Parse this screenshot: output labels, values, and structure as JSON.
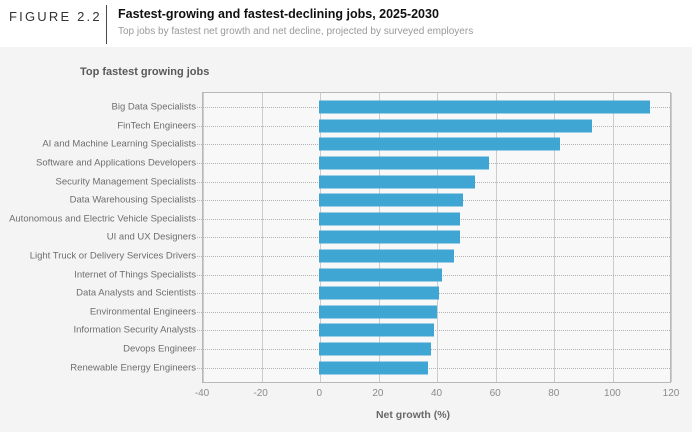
{
  "header": {
    "figure_label": "FIGURE 2.2",
    "title": "Fastest-growing and fastest-declining jobs, 2025-2030",
    "subtitle": "Top jobs by fastest net growth and net decline, projected by surveyed employers"
  },
  "panel": {
    "section_label": "Top fastest growing jobs"
  },
  "chart_data": {
    "type": "bar",
    "orientation": "horizontal",
    "title": "Top fastest growing jobs",
    "categories": [
      "Big Data Specialists",
      "FinTech Engineers",
      "AI and Machine Learning Specialists",
      "Software and Applications Developers",
      "Security Management Specialists",
      "Data Warehousing Specialists",
      "Autonomous and Electric Vehicle Specialists",
      "UI and UX Designers",
      "Light Truck or Delivery Services Drivers",
      "Internet of Things Specialists",
      "Data Analysts and Scientists",
      "Environmental Engineers",
      "Information Security Analysts",
      "Devops Engineer",
      "Renewable Energy Engineers"
    ],
    "values": [
      113,
      93,
      82,
      58,
      53,
      49,
      48,
      48,
      46,
      42,
      41,
      40,
      39,
      38,
      37
    ],
    "xlabel": "Net growth (%)",
    "ylabel": "",
    "xlim": [
      -40,
      120
    ],
    "xticks": [
      -40,
      -20,
      0,
      20,
      40,
      60,
      80,
      100,
      120
    ],
    "grid": true,
    "legend": false
  },
  "colors": {
    "bar": "#3fa6d3",
    "panel_bg": "#f4f4f5",
    "plot_bg": "#f8f8f8",
    "gridline": "#cbcdcd",
    "label_text": "#6e6e6e"
  }
}
